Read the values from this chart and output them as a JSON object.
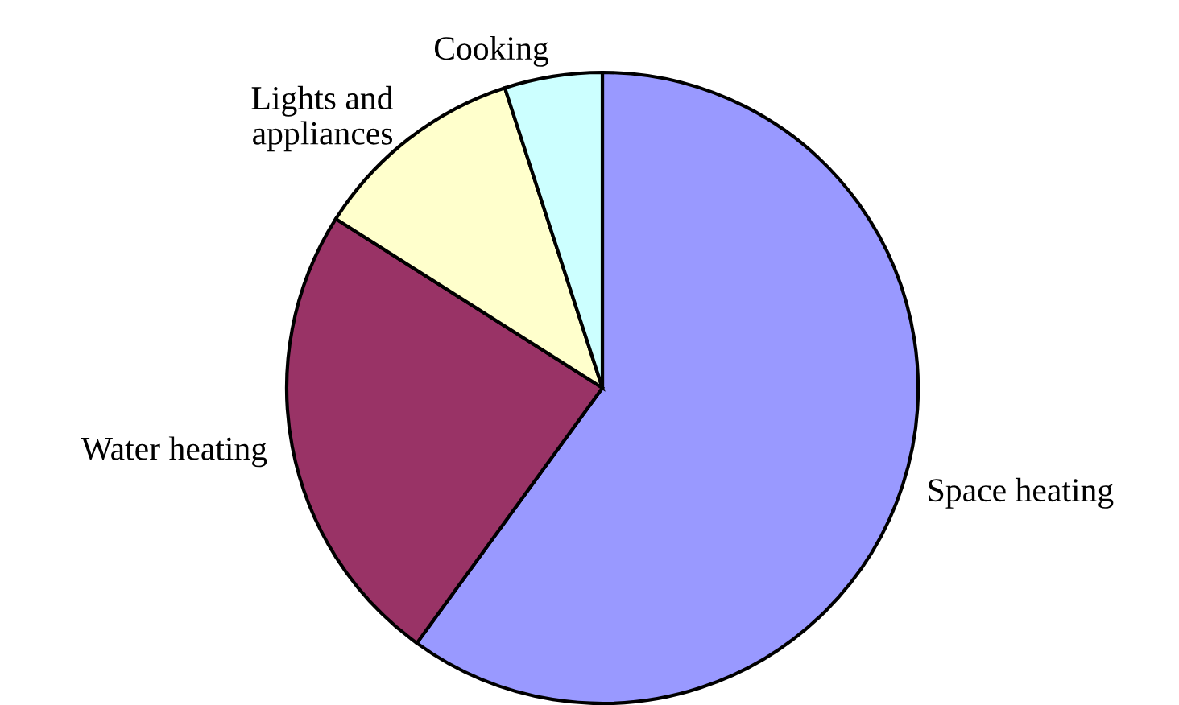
{
  "chart_data": {
    "type": "pie",
    "categories": [
      "Space heating",
      "Water heating",
      "Lights and\nappliances",
      "Cooking"
    ],
    "values": [
      60,
      24,
      11,
      5
    ],
    "colors": [
      "#9999ff",
      "#993366",
      "#ffffcc",
      "#ccffff"
    ],
    "legend": false
  }
}
